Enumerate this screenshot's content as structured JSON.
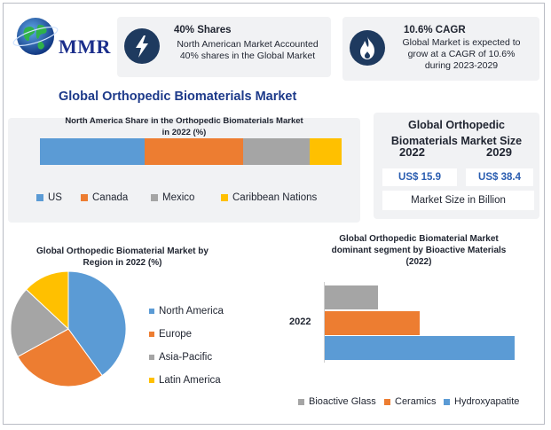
{
  "logo": {
    "text": "MMR"
  },
  "stats": [
    {
      "title": "40% Shares",
      "body": [
        "North American Market Accounted",
        "40% shares in the Global Market"
      ],
      "icon": "lightning-icon"
    },
    {
      "title": "10.6% CAGR",
      "body": [
        "Global Market is expected to",
        "grow at a CAGR of 10.6%",
        "during 2023-2029"
      ],
      "icon": "flame-icon"
    }
  ],
  "main_title": "Global Orthopedic Biomaterials Market",
  "market_size": {
    "title_lines": [
      "Global Orthopedic",
      "Biomaterials Market Size"
    ],
    "years": [
      "2022",
      "2029"
    ],
    "values": [
      "US$ 15.9",
      "US$ 38.4"
    ],
    "unit_label": "Market Size in Billion"
  },
  "colors": {
    "blue": "#5b9bd5",
    "orange": "#ed7d31",
    "gray": "#a5a5a5",
    "yellow": "#ffc000",
    "navy": "#1e3a5f",
    "title_blue": "#1d3a8a"
  },
  "chart_data": [
    {
      "type": "bar",
      "orientation": "horizontal-stacked",
      "title_lines": [
        "North America Share in the Orthopedic Biomaterials Market",
        "in 2022 (%)"
      ],
      "series": [
        {
          "name": "US",
          "values": [
            33
          ],
          "color": "#5b9bd5"
        },
        {
          "name": "Canada",
          "values": [
            31
          ],
          "color": "#ed7d31"
        },
        {
          "name": "Mexico",
          "values": [
            21
          ],
          "color": "#a5a5a5"
        },
        {
          "name": "Caribbean Nations",
          "values": [
            10
          ],
          "color": "#ffc000"
        }
      ],
      "legend": "bottom"
    },
    {
      "type": "pie",
      "title_lines": [
        "Global Orthopedic Biomaterial Market by",
        "Region in 2022 (%)"
      ],
      "labels": [
        "North America",
        "Europe",
        "Asia-Pacific",
        "Latin America"
      ],
      "values": [
        40,
        27,
        20,
        13
      ],
      "colors": [
        "#5b9bd5",
        "#ed7d31",
        "#a5a5a5",
        "#ffc000"
      ],
      "legend": "right"
    },
    {
      "type": "bar",
      "orientation": "horizontal",
      "title_lines": [
        "Global Orthopedic Biomaterial Market",
        "dominant segment by Bioactive Materials",
        "(2022)"
      ],
      "categories": [
        "2022"
      ],
      "series": [
        {
          "name": "Bioactive Glass",
          "values": [
            2.8
          ],
          "color": "#a5a5a5"
        },
        {
          "name": "Ceramics",
          "values": [
            5.0
          ],
          "color": "#ed7d31"
        },
        {
          "name": "Hydroxyapatite",
          "values": [
            10.0
          ],
          "color": "#5b9bd5"
        }
      ],
      "legend": "bottom"
    }
  ]
}
